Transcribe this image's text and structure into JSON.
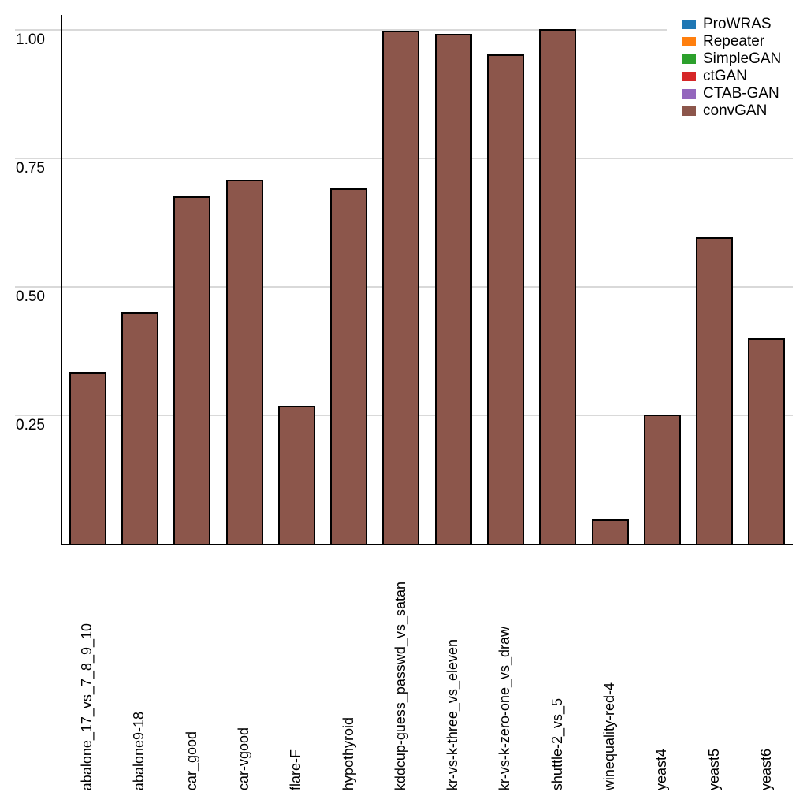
{
  "chart_data": {
    "type": "bar",
    "title": "",
    "xlabel": "",
    "ylabel": "",
    "categories": [
      "abalone_17_vs_7_8_9_10",
      "abalone9-18",
      "car_good",
      "car-vgood",
      "flare-F",
      "hypothyroid",
      "kddcup-guess_passwd_vs_satan",
      "kr-vs-k-three_vs_eleven",
      "kr-vs-k-zero-one_vs_draw",
      "shuttle-2_vs_5",
      "winequality-red-4",
      "yeast4",
      "yeast5",
      "yeast6"
    ],
    "series": [
      {
        "name": "convGAN",
        "color": "#8c564b",
        "values": [
          0.335,
          0.451,
          0.676,
          0.709,
          0.269,
          0.692,
          0.998,
          0.993,
          0.953,
          1.002,
          0.048,
          0.252,
          0.596,
          0.401
        ]
      }
    ],
    "y_axis": {
      "ticks": [
        {
          "value": 0.25,
          "label": "0.25"
        },
        {
          "value": 0.5,
          "label": "0.50"
        },
        {
          "value": 0.75,
          "label": "0.75"
        },
        {
          "value": 1.0,
          "label": "1.00"
        }
      ],
      "range": [
        0,
        1.03
      ]
    },
    "grid": "horizontal-major",
    "gridline_color": "#d9d9d9",
    "bar_edge_color": "#000000",
    "legend": {
      "position": "top-right",
      "entries": [
        {
          "label": "ProWRAS",
          "color": "#1f77b4"
        },
        {
          "label": "Repeater",
          "color": "#ff7f0e"
        },
        {
          "label": "SimpleGAN",
          "color": "#2ca02c"
        },
        {
          "label": "ctGAN",
          "color": "#d62728"
        },
        {
          "label": "CTAB-GAN",
          "color": "#9467bd"
        },
        {
          "label": "convGAN",
          "color": "#8c564b"
        }
      ]
    }
  }
}
